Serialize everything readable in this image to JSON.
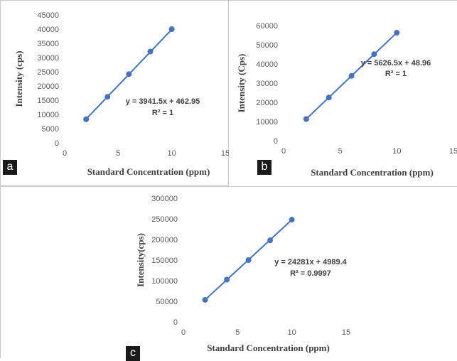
{
  "chart_data": [
    {
      "type": "scatter",
      "panel_label": "a",
      "xlabel": "Standard Concentration (ppm)",
      "ylabel": "Intensity (cps)",
      "xlim": [
        0,
        15
      ],
      "ylim": [
        0,
        45000
      ],
      "x_ticks": [
        0,
        5,
        10,
        15
      ],
      "y_ticks": [
        0,
        5000,
        10000,
        15000,
        20000,
        25000,
        30000,
        35000,
        40000,
        45000
      ],
      "grid": false,
      "series": [
        {
          "x": [
            2,
            4,
            6,
            8,
            10
          ],
          "y": [
            8300,
            16200,
            24200,
            32100,
            40000
          ]
        }
      ],
      "trendline": {
        "slope": 3941.5,
        "intercept": 462.95
      },
      "equation": "y = 3941.5x + 462.95",
      "r_squared": "R² = 1",
      "color": "#4472c4"
    },
    {
      "type": "scatter",
      "panel_label": "b",
      "xlabel": "Standard Concentration (ppm)",
      "ylabel": "Intensity (Cps)",
      "xlim": [
        0,
        15
      ],
      "ylim": [
        0,
        60000
      ],
      "x_ticks": [
        0,
        5,
        10,
        15
      ],
      "y_ticks": [
        0,
        10000,
        20000,
        30000,
        40000,
        50000,
        60000
      ],
      "grid": false,
      "series": [
        {
          "x": [
            2,
            4,
            6,
            8,
            10
          ],
          "y": [
            11300,
            22500,
            33800,
            45100,
            56300
          ]
        }
      ],
      "trendline": {
        "slope": 5626.5,
        "intercept": 48.96
      },
      "equation": "y = 5626.5x + 48.96",
      "r_squared": "R² = 1",
      "color": "#4472c4"
    },
    {
      "type": "scatter",
      "panel_label": "c",
      "xlabel": "Standard Concentration (ppm)",
      "ylabel": "Intensity(cps)",
      "xlim": [
        0,
        15
      ],
      "ylim": [
        0,
        300000
      ],
      "x_ticks": [
        0,
        5,
        10,
        15
      ],
      "y_ticks": [
        0,
        50000,
        100000,
        150000,
        200000,
        250000,
        300000
      ],
      "grid": false,
      "series": [
        {
          "x": [
            2,
            4,
            6,
            8,
            10
          ],
          "y": [
            53500,
            102500,
            150000,
            198000,
            248000
          ]
        }
      ],
      "trendline": {
        "slope": 24281,
        "intercept": 4989.4
      },
      "equation": "y = 24281x + 4989.4",
      "r_squared": "R² = 0.9997",
      "color": "#4472c4"
    }
  ]
}
